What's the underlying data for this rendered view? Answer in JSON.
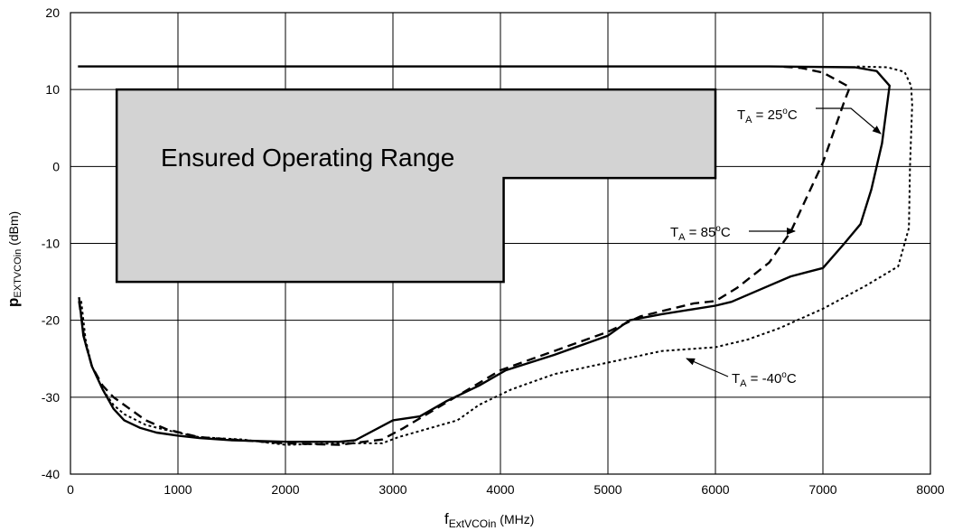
{
  "chart_data": {
    "type": "line",
    "title": "",
    "xlabel": {
      "main": "f",
      "sub": "ExtVCOin",
      "unit": " (MHz)"
    },
    "ylabel": {
      "main": "p",
      "sub": "EXTVCOin",
      "unit": " (dBm)"
    },
    "xlim": [
      0,
      8000
    ],
    "ylim": [
      -40,
      20
    ],
    "xticks": [
      0,
      1000,
      2000,
      3000,
      4000,
      5000,
      6000,
      7000,
      8000
    ],
    "yticks": [
      -40,
      -30,
      -20,
      -10,
      0,
      10,
      20
    ],
    "grid": true,
    "legend": "none",
    "region": {
      "label": "Ensured Operating Range",
      "fill": "#d3d3d3",
      "polygon": [
        [
          430,
          10
        ],
        [
          6000,
          10
        ],
        [
          6000,
          -1.5
        ],
        [
          4030,
          -1.5
        ],
        [
          4030,
          -15
        ],
        [
          430,
          -15
        ]
      ]
    },
    "series": [
      {
        "name": "T_A = 25°C",
        "style": "solid",
        "points": [
          [
            80,
            -17
          ],
          [
            120,
            -22
          ],
          [
            200,
            -26
          ],
          [
            300,
            -29
          ],
          [
            400,
            -31.5
          ],
          [
            500,
            -33
          ],
          [
            650,
            -34
          ],
          [
            800,
            -34.6
          ],
          [
            1000,
            -35
          ],
          [
            1200,
            -35.3
          ],
          [
            1500,
            -35.6
          ],
          [
            2000,
            -35.8
          ],
          [
            2500,
            -35.8
          ],
          [
            2650,
            -35.6
          ],
          [
            3000,
            -33
          ],
          [
            3250,
            -32.5
          ],
          [
            3500,
            -30.5
          ],
          [
            3800,
            -28.5
          ],
          [
            4050,
            -26.5
          ],
          [
            4500,
            -24.5
          ],
          [
            4800,
            -23
          ],
          [
            5000,
            -22
          ],
          [
            5200,
            -20
          ],
          [
            5500,
            -19.2
          ],
          [
            6000,
            -18.1
          ],
          [
            6150,
            -17.6
          ],
          [
            6500,
            -15.5
          ],
          [
            6700,
            -14.3
          ],
          [
            7000,
            -13.2
          ],
          [
            7200,
            -10
          ],
          [
            7350,
            -7.5
          ],
          [
            7450,
            -3
          ],
          [
            7550,
            3
          ],
          [
            7620,
            10.5
          ],
          [
            7500,
            12.4
          ],
          [
            7300,
            12.9
          ],
          [
            6500,
            13
          ],
          [
            70,
            13
          ]
        ]
      },
      {
        "name": "T_A = 85°C",
        "style": "dashed",
        "points": [
          [
            80,
            -17.5
          ],
          [
            130,
            -22.5
          ],
          [
            200,
            -26
          ],
          [
            300,
            -28.5
          ],
          [
            400,
            -30
          ],
          [
            500,
            -31
          ],
          [
            700,
            -33
          ],
          [
            900,
            -34.2
          ],
          [
            1200,
            -35.2
          ],
          [
            1500,
            -35.5
          ],
          [
            1800,
            -35.8
          ],
          [
            2000,
            -36
          ],
          [
            2500,
            -36.2
          ],
          [
            2900,
            -35.5
          ],
          [
            3100,
            -34
          ],
          [
            3400,
            -31.5
          ],
          [
            3700,
            -29
          ],
          [
            4000,
            -26.5
          ],
          [
            4500,
            -24
          ],
          [
            5000,
            -21.5
          ],
          [
            5300,
            -19.5
          ],
          [
            5800,
            -17.8
          ],
          [
            6000,
            -17.5
          ],
          [
            6200,
            -15.8
          ],
          [
            6500,
            -12.5
          ],
          [
            6700,
            -8.5
          ],
          [
            6850,
            -4
          ],
          [
            7000,
            0.5
          ],
          [
            7200,
            8.5
          ],
          [
            7250,
            10.3
          ],
          [
            7000,
            12.2
          ],
          [
            6800,
            12.8
          ],
          [
            6600,
            13
          ]
        ]
      },
      {
        "name": "T_A = -40°C",
        "style": "dotted",
        "points": [
          [
            100,
            -17.5
          ],
          [
            140,
            -22.5
          ],
          [
            200,
            -26
          ],
          [
            300,
            -29
          ],
          [
            400,
            -31
          ],
          [
            500,
            -32.2
          ],
          [
            700,
            -33.6
          ],
          [
            900,
            -34.3
          ],
          [
            1200,
            -35.2
          ],
          [
            1600,
            -35.5
          ],
          [
            2000,
            -36.2
          ],
          [
            2500,
            -36
          ],
          [
            2900,
            -36
          ],
          [
            3050,
            -35.2
          ],
          [
            3300,
            -34.2
          ],
          [
            3600,
            -33
          ],
          [
            3800,
            -31
          ],
          [
            4100,
            -29
          ],
          [
            4500,
            -27
          ],
          [
            5000,
            -25.5
          ],
          [
            5500,
            -24
          ],
          [
            6000,
            -23.5
          ],
          [
            6300,
            -22.5
          ],
          [
            6600,
            -21
          ],
          [
            7000,
            -18.5
          ],
          [
            7400,
            -15.5
          ],
          [
            7700,
            -13
          ],
          [
            7800,
            -8
          ],
          [
            7810,
            0
          ],
          [
            7830,
            8
          ],
          [
            7820,
            10.5
          ],
          [
            7760,
            12.3
          ],
          [
            7600,
            12.9
          ],
          [
            7300,
            13
          ]
        ]
      }
    ],
    "annotations": [
      {
        "prefix": "T",
        "sub": "A",
        "suffix": " =  25",
        "sup": "o",
        "unit": "C"
      },
      {
        "prefix": "T",
        "sub": "A",
        "suffix": " =  85",
        "sup": "o",
        "unit": "C"
      },
      {
        "prefix": "T",
        "sub": "A",
        "suffix": " = -40",
        "sup": "o",
        "unit": "C"
      }
    ]
  }
}
